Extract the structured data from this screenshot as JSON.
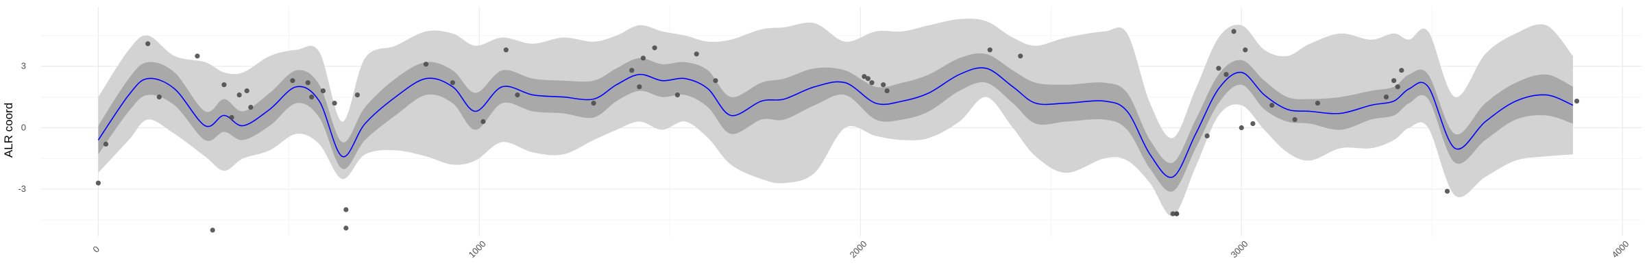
{
  "chart_data": {
    "type": "line",
    "title": "",
    "xlabel": "",
    "ylabel": "ALR coord",
    "xlim": [
      -150,
      4050
    ],
    "ylim": [
      -5.3,
      5.9
    ],
    "x_ticks": [
      0,
      1000,
      2000,
      3000,
      4000
    ],
    "x_tick_labels": [
      "0",
      "1000",
      "2000",
      "3000",
      "4000"
    ],
    "y_ticks": [
      -3,
      0,
      3
    ],
    "y_tick_labels": [
      "-3",
      "0",
      "3"
    ],
    "grid": true,
    "legend": "none",
    "colors": {
      "mean_line": "#0000ff",
      "inner_band": "#a9a9a9",
      "outer_band": "#d3d3d3",
      "points": "#4d4d4d",
      "grid_major": "#ebebeb",
      "grid_minor": "#f5f5f5"
    },
    "series": [
      {
        "type": "line",
        "x": [
          0,
          80,
          130,
          200,
          280,
          330,
          380,
          450,
          520,
          580,
          640,
          700,
          780,
          860,
          930,
          990,
          1060,
          1140,
          1220,
          1300,
          1360,
          1420,
          1480,
          1540,
          1600,
          1660,
          1740,
          1800,
          1880,
          1960,
          2040,
          2110,
          2180,
          2260,
          2330,
          2400,
          2460,
          2540,
          2640,
          2700,
          2760,
          2820,
          2880,
          2940,
          3000,
          3060,
          3120,
          3180,
          3260,
          3340,
          3400,
          3440,
          3490,
          3560,
          3640,
          3720,
          3800,
          3870
        ],
        "y": [
          -0.6,
          1.6,
          2.4,
          1.9,
          0.1,
          0.6,
          0.1,
          0.9,
          2.0,
          1.3,
          -1.4,
          0.2,
          1.5,
          2.4,
          2.0,
          0.8,
          2.0,
          1.6,
          1.5,
          1.4,
          2.1,
          2.6,
          2.3,
          2.4,
          1.9,
          0.6,
          1.3,
          1.4,
          2.0,
          2.2,
          1.2,
          1.3,
          1.7,
          2.6,
          2.9,
          2.0,
          1.2,
          1.2,
          1.3,
          0.8,
          -1.3,
          -2.4,
          -0.3,
          1.9,
          2.7,
          1.6,
          0.9,
          0.8,
          0.7,
          1.1,
          1.3,
          1.9,
          2.0,
          -1.0,
          0.3,
          1.3,
          1.6,
          1.1
        ]
      },
      {
        "type": "band",
        "x": [
          0,
          80,
          130,
          200,
          280,
          330,
          380,
          450,
          520,
          580,
          640,
          700,
          780,
          860,
          930,
          990,
          1060,
          1140,
          1220,
          1300,
          1360,
          1420,
          1480,
          1540,
          1600,
          1660,
          1740,
          1800,
          1880,
          1960,
          2040,
          2110,
          2180,
          2260,
          2330,
          2400,
          2460,
          2540,
          2640,
          2700,
          2760,
          2820,
          2880,
          2940,
          3000,
          3060,
          3120,
          3180,
          3260,
          3340,
          3400,
          3440,
          3490,
          3560,
          3640,
          3720,
          3800,
          3870
        ],
        "lower": [
          -1.3,
          0.8,
          1.6,
          1.1,
          -0.6,
          -0.2,
          -0.6,
          0.1,
          1.2,
          0.5,
          -2.0,
          -0.6,
          0.6,
          1.6,
          1.2,
          -0.1,
          1.2,
          0.8,
          0.7,
          0.5,
          1.3,
          1.8,
          1.5,
          1.6,
          1.0,
          -0.3,
          0.4,
          0.4,
          1.1,
          1.6,
          0.4,
          0.4,
          0.8,
          1.8,
          2.2,
          1.2,
          0.2,
          0.3,
          0.4,
          -0.1,
          -2.0,
          -3.1,
          -1.0,
          1.2,
          2.1,
          0.9,
          0.3,
          0.2,
          -0.1,
          0.4,
          0.6,
          1.2,
          1.4,
          -1.7,
          -0.6,
          0.4,
          0.6,
          0.2
        ],
        "upper": [
          0.1,
          2.4,
          3.2,
          2.7,
          0.8,
          1.4,
          0.8,
          1.7,
          2.8,
          2.1,
          -0.7,
          1.0,
          2.4,
          3.2,
          2.8,
          1.7,
          2.8,
          2.4,
          2.3,
          2.3,
          2.9,
          3.4,
          3.1,
          3.2,
          2.8,
          1.5,
          2.2,
          2.4,
          2.9,
          2.8,
          2.0,
          2.2,
          2.6,
          3.4,
          3.6,
          2.8,
          2.2,
          2.1,
          2.2,
          1.7,
          -0.6,
          -1.7,
          0.4,
          2.6,
          3.3,
          2.3,
          1.5,
          1.4,
          1.5,
          1.8,
          2.0,
          2.6,
          2.6,
          -0.3,
          1.2,
          2.2,
          2.6,
          2.0
        ]
      },
      {
        "type": "band",
        "x": [
          0,
          80,
          130,
          200,
          280,
          330,
          380,
          450,
          520,
          580,
          640,
          700,
          780,
          860,
          930,
          990,
          1060,
          1140,
          1220,
          1300,
          1360,
          1420,
          1480,
          1540,
          1600,
          1660,
          1740,
          1800,
          1880,
          1960,
          2040,
          2110,
          2180,
          2260,
          2330,
          2400,
          2460,
          2540,
          2640,
          2700,
          2760,
          2820,
          2880,
          2940,
          3000,
          3060,
          3120,
          3180,
          3260,
          3340,
          3400,
          3440,
          3490,
          3560,
          3640,
          3720,
          3800,
          3870
        ],
        "lower": [
          -2.2,
          -0.6,
          0.4,
          -0.3,
          -1.4,
          -2.1,
          -1.5,
          -1.1,
          -0.3,
          -0.8,
          -2.5,
          -1.3,
          -1.1,
          -1.4,
          -1.8,
          -1.6,
          -0.7,
          -1.2,
          -1.3,
          -0.6,
          -0.1,
          0.3,
          -0.1,
          0.3,
          -0.5,
          -1.8,
          -2.5,
          -2.7,
          -2.2,
          0.0,
          -0.4,
          -0.6,
          -0.5,
          0.3,
          1.5,
          0.0,
          -1.4,
          -2.2,
          -1.5,
          -1.6,
          -2.7,
          -4.3,
          -1.9,
          0.6,
          1.1,
          -0.1,
          -1.2,
          -1.6,
          -1.0,
          -1.0,
          -0.6,
          0.0,
          0.0,
          -3.3,
          -2.4,
          -1.6,
          -1.4,
          -1.3
        ],
        "upper": [
          1.5,
          3.8,
          4.5,
          3.5,
          3.2,
          2.7,
          2.7,
          3.5,
          3.8,
          3.7,
          0.3,
          3.4,
          4.0,
          4.7,
          4.6,
          4.0,
          4.4,
          4.1,
          4.4,
          4.2,
          4.5,
          5.0,
          4.7,
          4.5,
          4.2,
          4.3,
          4.8,
          4.9,
          5.1,
          4.2,
          4.7,
          4.7,
          5.0,
          5.3,
          5.2,
          4.4,
          4.0,
          4.4,
          4.7,
          4.6,
          1.2,
          -0.5,
          1.9,
          4.4,
          5.0,
          3.8,
          3.5,
          4.1,
          4.6,
          4.3,
          4.6,
          4.3,
          4.7,
          1.5,
          3.6,
          4.6,
          5.0,
          3.5
        ]
      },
      {
        "type": "scatter",
        "x": [
          0,
          20,
          130,
          160,
          260,
          300,
          330,
          350,
          370,
          390,
          400,
          510,
          550,
          560,
          590,
          620,
          650,
          650,
          680,
          860,
          930,
          1010,
          1070,
          1100,
          1300,
          1400,
          1420,
          1430,
          1460,
          1520,
          1570,
          1620,
          2010,
          2020,
          2030,
          2060,
          2070,
          2340,
          2420,
          2820,
          2830,
          2830,
          2910,
          2940,
          2960,
          2980,
          3000,
          3010,
          3030,
          3080,
          3140,
          3200,
          3380,
          3400,
          3410,
          3420,
          3540,
          3880
        ],
        "y": [
          -2.7,
          -0.8,
          4.1,
          1.5,
          3.5,
          -5.0,
          2.1,
          0.5,
          1.6,
          1.8,
          1.0,
          2.3,
          2.2,
          1.5,
          1.8,
          1.2,
          -4.0,
          -4.9,
          1.6,
          3.1,
          2.2,
          0.3,
          3.8,
          1.6,
          1.2,
          2.8,
          2.0,
          3.4,
          3.9,
          1.6,
          3.6,
          2.3,
          2.5,
          2.4,
          2.2,
          2.1,
          1.8,
          3.8,
          3.5,
          -4.2,
          -4.2,
          -4.2,
          -0.4,
          2.9,
          2.6,
          4.7,
          0.0,
          3.8,
          0.2,
          1.1,
          0.4,
          1.2,
          1.5,
          2.3,
          2.0,
          2.8,
          -3.1,
          1.3
        ]
      }
    ]
  }
}
